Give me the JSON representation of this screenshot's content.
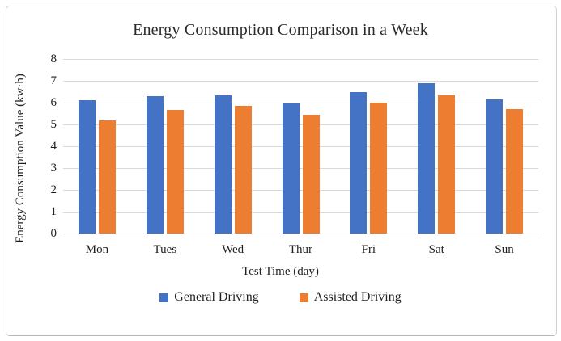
{
  "figure": {
    "background": "#ffffff",
    "border_color": "#d2d2d2"
  },
  "chart_data": {
    "type": "bar",
    "title": "Energy Consumption Comparison in a Week",
    "xlabel": "Test Time (day)",
    "ylabel": "Energy Consumption Value (kw·h)",
    "categories": [
      "Mon",
      "Tues",
      "Wed",
      "Thur",
      "Fri",
      "Sat",
      "Sun"
    ],
    "series": [
      {
        "name": "General Driving",
        "color": "#4472C4",
        "values": [
          6.1,
          6.3,
          6.35,
          5.95,
          6.5,
          6.9,
          6.15
        ]
      },
      {
        "name": "Assisted Driving",
        "color": "#ED7D31",
        "values": [
          5.2,
          5.65,
          5.85,
          5.45,
          6.0,
          6.35,
          5.7
        ]
      }
    ],
    "ylim": [
      0,
      8
    ],
    "yticks": [
      0,
      1,
      2,
      3,
      4,
      5,
      6,
      7,
      8
    ],
    "grid": true,
    "gridline_color": "#d9d9d9",
    "legend_position": "bottom"
  }
}
